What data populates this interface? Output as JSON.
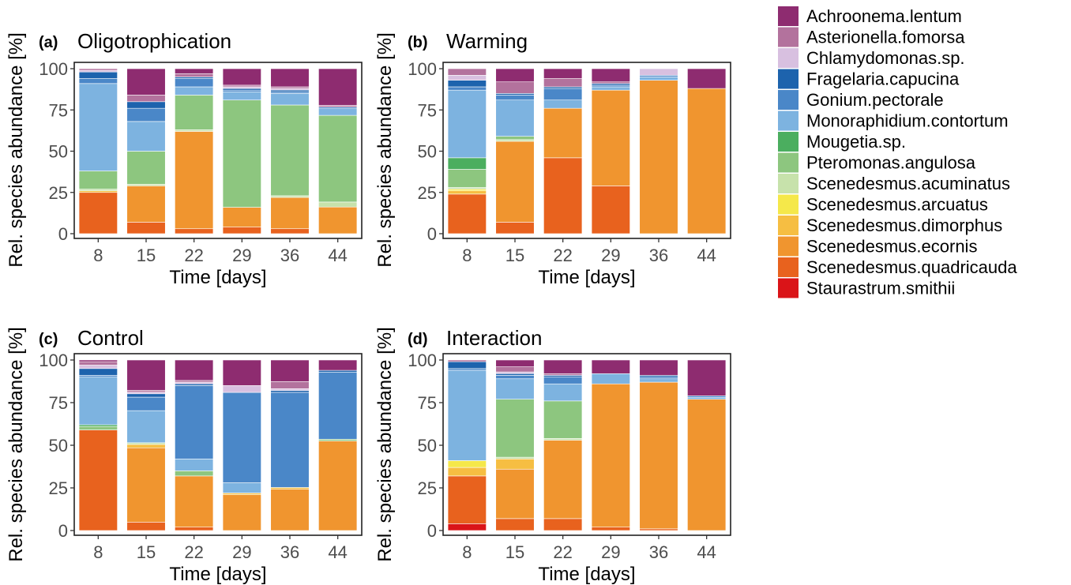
{
  "chart_data": {
    "type": "bar",
    "stacked": true,
    "categories": [
      "8",
      "15",
      "22",
      "29",
      "36",
      "44"
    ],
    "xlabel": "Time [days]",
    "ylabel": "Rel. species abundance [%]",
    "ylim": [
      0,
      100
    ],
    "yticks": [
      "0",
      "25",
      "50",
      "75",
      "100"
    ],
    "grid": false,
    "legend_position": "right",
    "species": [
      {
        "name": "Achroonema.lentum",
        "color": "#8E2C70"
      },
      {
        "name": "Asterionella.fomorsa",
        "color": "#B3729D"
      },
      {
        "name": "Chlamydomonas.sp.",
        "color": "#D8C0E0"
      },
      {
        "name": "Fragelaria.capucina",
        "color": "#1D63AD"
      },
      {
        "name": "Gonium.pectorale",
        "color": "#4A87C8"
      },
      {
        "name": "Monoraphidium.contortum",
        "color": "#7DB3E0"
      },
      {
        "name": "Mougetia.sp.",
        "color": "#4BAE5F"
      },
      {
        "name": "Pteromonas.angulosa",
        "color": "#8DC67F"
      },
      {
        "name": "Scenedesmus.acuminatus",
        "color": "#C7E2AB"
      },
      {
        "name": "Scenedesmus.arcuatus",
        "color": "#F5E84A"
      },
      {
        "name": "Scenedesmus.dimorphus",
        "color": "#F6BE42"
      },
      {
        "name": "Scenedesmus.ecornis",
        "color": "#F0952F"
      },
      {
        "name": "Scenedesmus.quadricauda",
        "color": "#E8621E"
      },
      {
        "name": "Staurastrum.smithii",
        "color": "#DA1418"
      }
    ],
    "panels": [
      {
        "letter": "(a)",
        "title": "Oligotrophication",
        "series": [
          {
            "name": "Achroonema.lentum",
            "values": [
              0,
              16,
              3,
              10,
              11,
              22
            ]
          },
          {
            "name": "Asterionella.fomorsa",
            "values": [
              1,
              4,
              2,
              1,
              1,
              1
            ]
          },
          {
            "name": "Chlamydomonas.sp.",
            "values": [
              1,
              0,
              0,
              1,
              1,
              0
            ]
          },
          {
            "name": "Fragelaria.capucina",
            "values": [
              4,
              4,
              1,
              1,
              1,
              0
            ]
          },
          {
            "name": "Gonium.pectorale",
            "values": [
              3,
              8,
              5,
              1,
              1,
              1
            ]
          },
          {
            "name": "Monoraphidium.contortum",
            "values": [
              53,
              18,
              5,
              5,
              7,
              4
            ]
          },
          {
            "name": "Mougetia.sp.",
            "values": [
              0,
              0,
              0,
              0,
              0,
              0
            ]
          },
          {
            "name": "Pteromonas.angulosa",
            "values": [
              11,
              20,
              21,
              65,
              55,
              52
            ]
          },
          {
            "name": "Scenedesmus.acuminatus",
            "values": [
              1,
              1,
              1,
              0,
              1,
              3
            ]
          },
          {
            "name": "Scenedesmus.arcuatus",
            "values": [
              0,
              0,
              0,
              0,
              0,
              0
            ]
          },
          {
            "name": "Scenedesmus.dimorphus",
            "values": [
              1,
              0,
              0,
              0,
              0,
              0
            ]
          },
          {
            "name": "Scenedesmus.ecornis",
            "values": [
              0,
              22,
              59,
              12,
              19,
              16
            ]
          },
          {
            "name": "Scenedesmus.quadricauda",
            "values": [
              25,
              7,
              3,
              4,
              3,
              0
            ]
          },
          {
            "name": "Staurastrum.smithii",
            "values": [
              0,
              0,
              0,
              0,
              0,
              0
            ]
          }
        ]
      },
      {
        "letter": "(b)",
        "title": "Warming",
        "series": [
          {
            "name": "Achroonema.lentum",
            "values": [
              0,
              8,
              6,
              8,
              0,
              12
            ]
          },
          {
            "name": "Asterionella.fomorsa",
            "values": [
              4,
              7,
              5,
              1,
              0,
              0
            ]
          },
          {
            "name": "Chlamydomonas.sp.",
            "values": [
              3,
              0,
              0,
              0,
              4,
              0
            ]
          },
          {
            "name": "Fragelaria.capucina",
            "values": [
              4,
              1,
              1,
              1,
              0,
              0
            ]
          },
          {
            "name": "Gonium.pectorale",
            "values": [
              2,
              3,
              7,
              1,
              1,
              0
            ]
          },
          {
            "name": "Monoraphidium.contortum",
            "values": [
              41,
              22,
              5,
              2,
              2,
              0
            ]
          },
          {
            "name": "Mougetia.sp.",
            "values": [
              7,
              0,
              0,
              0,
              0,
              0
            ]
          },
          {
            "name": "Pteromonas.angulosa",
            "values": [
              11,
              2,
              0,
              0,
              0,
              0
            ]
          },
          {
            "name": "Scenedesmus.acuminatus",
            "values": [
              1,
              1,
              0,
              0,
              0,
              0
            ]
          },
          {
            "name": "Scenedesmus.arcuatus",
            "values": [
              1,
              0,
              0,
              0,
              0,
              0
            ]
          },
          {
            "name": "Scenedesmus.dimorphus",
            "values": [
              2,
              0,
              0,
              0,
              0,
              0
            ]
          },
          {
            "name": "Scenedesmus.ecornis",
            "values": [
              0,
              49,
              30,
              58,
              93,
              88
            ]
          },
          {
            "name": "Scenedesmus.quadricauda",
            "values": [
              24,
              7,
              46,
              29,
              0,
              0
            ]
          },
          {
            "name": "Staurastrum.smithii",
            "values": [
              0,
              0,
              0,
              0,
              0,
              0
            ]
          }
        ]
      },
      {
        "letter": "(c)",
        "title": "Control",
        "series": [
          {
            "name": "Achroonema.lentum",
            "values": [
              1,
              18,
              12,
              15,
              12,
              6
            ]
          },
          {
            "name": "Asterionella.fomorsa",
            "values": [
              2,
              1,
              1,
              0,
              4,
              0
            ]
          },
          {
            "name": "Chlamydomonas.sp.",
            "values": [
              2,
              1,
              1,
              4,
              1,
              0
            ]
          },
          {
            "name": "Fragelaria.capucina",
            "values": [
              4,
              2,
              1,
              0,
              1,
              1
            ]
          },
          {
            "name": "Gonium.pectorale",
            "values": [
              1,
              8,
              43,
              53,
              53,
              39
            ]
          },
          {
            "name": "Monoraphidium.contortum",
            "values": [
              28,
              19,
              7,
              6,
              0,
              0
            ]
          },
          {
            "name": "Mougetia.sp.",
            "values": [
              1,
              0,
              0,
              0,
              0,
              0
            ]
          },
          {
            "name": "Pteromonas.angulosa",
            "values": [
              2,
              0,
              3,
              0,
              0,
              1
            ]
          },
          {
            "name": "Scenedesmus.acuminatus",
            "values": [
              0,
              1,
              0,
              0,
              0,
              0
            ]
          },
          {
            "name": "Scenedesmus.arcuatus",
            "values": [
              0,
              0,
              0,
              0,
              0,
              0
            ]
          },
          {
            "name": "Scenedesmus.dimorphus",
            "values": [
              0,
              2,
              0,
              1,
              1,
              0
            ]
          },
          {
            "name": "Scenedesmus.ecornis",
            "values": [
              0,
              44,
              30,
              21,
              23,
              52
            ]
          },
          {
            "name": "Scenedesmus.quadricauda",
            "values": [
              59,
              5,
              2,
              0,
              0,
              0
            ]
          },
          {
            "name": "Staurastrum.smithii",
            "values": [
              0,
              0,
              0,
              0,
              0,
              0
            ]
          }
        ]
      },
      {
        "letter": "(d)",
        "title": "Interaction",
        "series": [
          {
            "name": "Achroonema.lentum",
            "values": [
              0,
              4,
              8,
              8,
              9,
              21
            ]
          },
          {
            "name": "Asterionella.fomorsa",
            "values": [
              1,
              3,
              1,
              0,
              0,
              0
            ]
          },
          {
            "name": "Chlamydomonas.sp.",
            "values": [
              0,
              1,
              0,
              0,
              0,
              0
            ]
          },
          {
            "name": "Fragelaria.capucina",
            "values": [
              4,
              1,
              1,
              0,
              1,
              0
            ]
          },
          {
            "name": "Gonium.pectorale",
            "values": [
              1,
              2,
              4,
              0,
              1,
              1
            ]
          },
          {
            "name": "Monoraphidium.contortum",
            "values": [
              53,
              12,
              10,
              6,
              2,
              1
            ]
          },
          {
            "name": "Mougetia.sp.",
            "values": [
              0,
              0,
              0,
              0,
              0,
              0
            ]
          },
          {
            "name": "Pteromonas.angulosa",
            "values": [
              0,
              34,
              22,
              0,
              0,
              0
            ]
          },
          {
            "name": "Scenedesmus.acuminatus",
            "values": [
              0,
              1,
              1,
              0,
              0,
              0
            ]
          },
          {
            "name": "Scenedesmus.arcuatus",
            "values": [
              4,
              0,
              0,
              0,
              0,
              0
            ]
          },
          {
            "name": "Scenedesmus.dimorphus",
            "values": [
              5,
              6,
              0,
              0,
              0,
              0
            ]
          },
          {
            "name": "Scenedesmus.ecornis",
            "values": [
              0,
              29,
              46,
              84,
              86,
              77
            ]
          },
          {
            "name": "Scenedesmus.quadricauda",
            "values": [
              28,
              7,
              7,
              2,
              1,
              0
            ]
          },
          {
            "name": "Staurastrum.smithii",
            "values": [
              4,
              0,
              0,
              0,
              0,
              0
            ]
          }
        ]
      }
    ]
  }
}
